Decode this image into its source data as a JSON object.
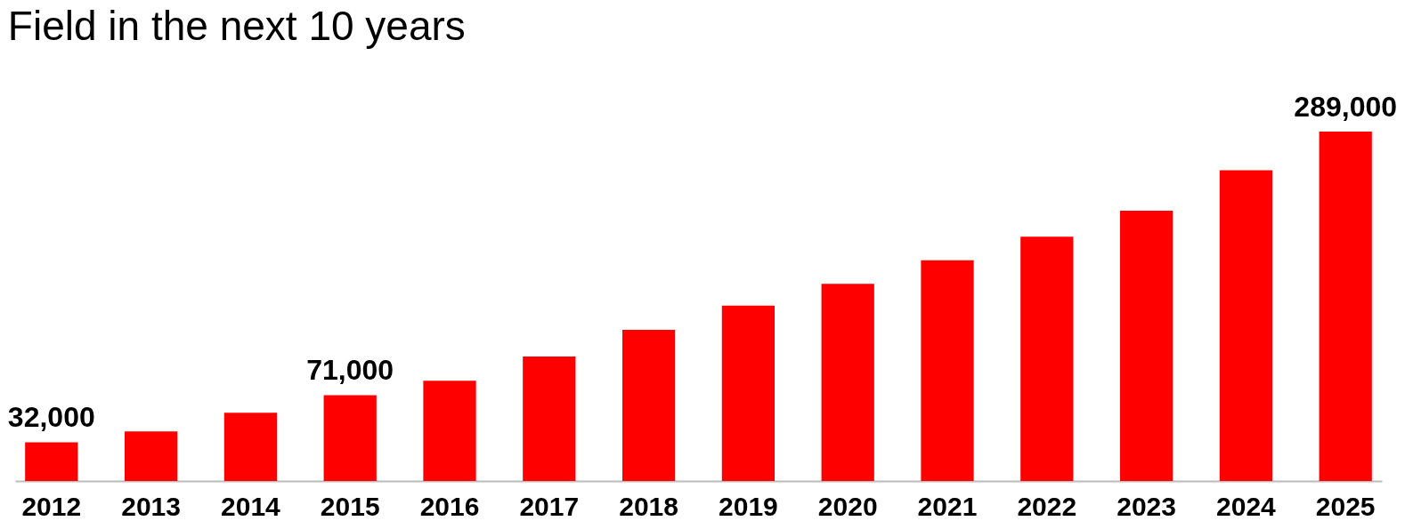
{
  "chart_data": {
    "type": "bar",
    "title": "Field in the next 10 years",
    "categories": [
      "2012",
      "2013",
      "2014",
      "2015",
      "2016",
      "2017",
      "2018",
      "2019",
      "2020",
      "2021",
      "2022",
      "2023",
      "2024",
      "2025"
    ],
    "values": [
      32000,
      41000,
      56500,
      71000,
      83000,
      103000,
      125000,
      145000,
      163000,
      182500,
      202000,
      223500,
      257000,
      289000
    ],
    "value_labels": [
      "32,000",
      null,
      null,
      "71,000",
      null,
      null,
      null,
      null,
      null,
      null,
      null,
      null,
      null,
      "289,000"
    ],
    "color": "#ff0000",
    "grid": false
  }
}
